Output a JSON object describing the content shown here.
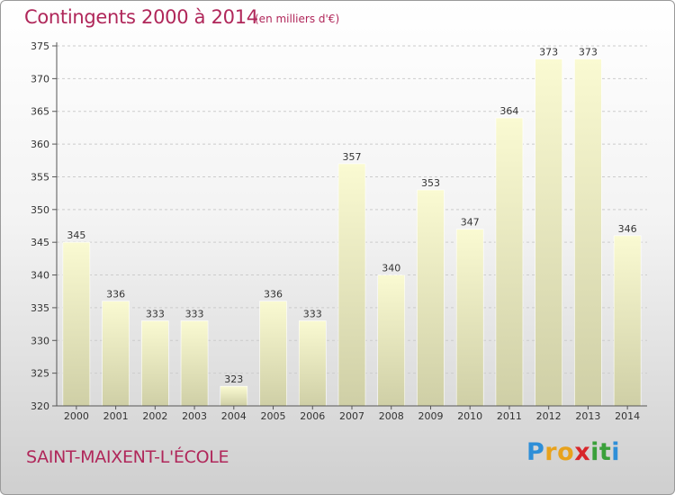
{
  "header": {
    "title": "Contingents 2000 à 2014",
    "subtitle": "(en milliers d'€)"
  },
  "footer": {
    "commune": "SAINT-MAIXENT-L'ÉCOLE",
    "logo_letters": [
      "P",
      "r",
      "o",
      "x",
      "i",
      "t",
      "i"
    ],
    "logo_colors": [
      "#2e8fd8",
      "#e8a21c",
      "#e8a21c",
      "#d8262a",
      "#3aa03a",
      "#3aa03a",
      "#2e8fd8"
    ]
  },
  "chart_data": {
    "type": "bar",
    "categories": [
      "2000",
      "2001",
      "2002",
      "2003",
      "2004",
      "2005",
      "2006",
      "2007",
      "2008",
      "2009",
      "2010",
      "2011",
      "2012",
      "2013",
      "2014"
    ],
    "values": [
      345,
      336,
      333,
      333,
      323,
      336,
      333,
      357,
      340,
      353,
      347,
      364,
      373,
      373,
      346
    ],
    "title": "Contingents 2000 à 2014",
    "ylim": [
      320,
      375
    ],
    "yticks": [
      320,
      325,
      330,
      335,
      340,
      345,
      350,
      355,
      360,
      365,
      370,
      375
    ],
    "grid": "horizontal-dashed",
    "colors": {
      "bar_top": "#fafad2",
      "bar_bottom": "#cfcfa6",
      "grid": "#cccccc",
      "axis": "#555555"
    }
  }
}
